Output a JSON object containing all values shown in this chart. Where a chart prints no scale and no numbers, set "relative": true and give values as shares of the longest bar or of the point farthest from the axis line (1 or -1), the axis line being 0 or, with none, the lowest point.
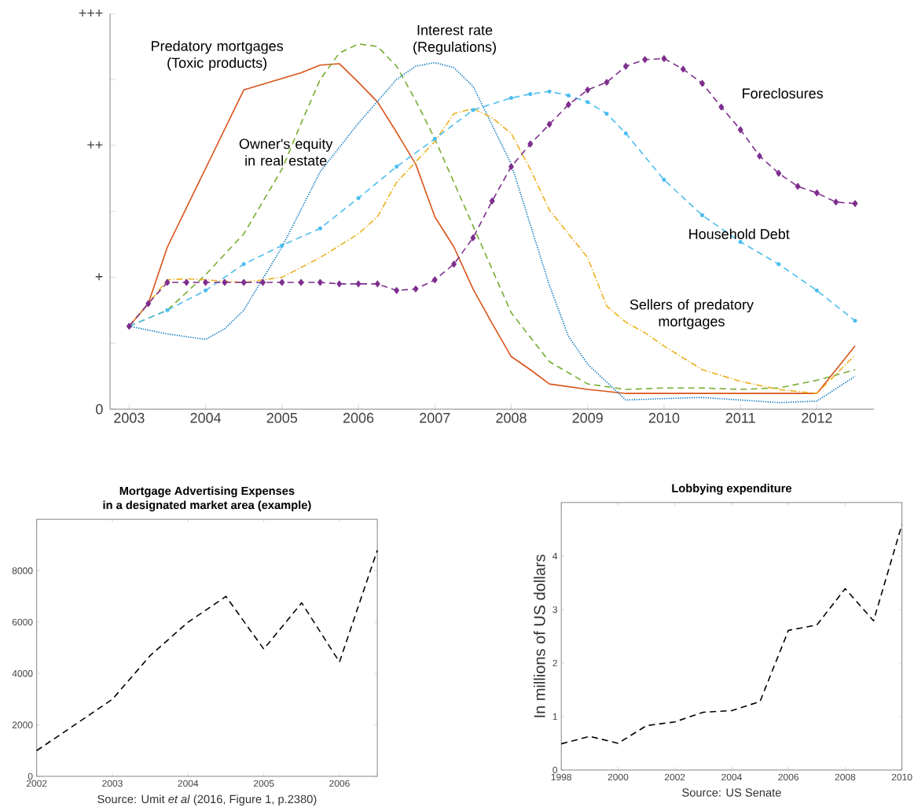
{
  "chart_data": [
    {
      "type": "line",
      "relative": true,
      "xlim": [
        2002.75,
        2012.75
      ],
      "xticks": [
        2003,
        2004,
        2005,
        2006,
        2007,
        2008,
        2009,
        2010,
        2011,
        2012
      ],
      "annotations": [
        "0",
        "+",
        "++",
        "+++"
      ],
      "series": [
        {
          "name": "Predatory mortgages (Toxic products)",
          "color": "#d95319",
          "line_style": "solid",
          "marker": "none",
          "x": [
            2003,
            2003.25,
            2003.5,
            2004.5,
            2005.25,
            2005.5,
            2005.75,
            2006,
            2006.25,
            2006.5,
            2006.75,
            2007,
            2007.25,
            2007.5,
            2007.75,
            2008,
            2008.25,
            2008.5,
            2009,
            2009.5,
            2012,
            2012.5
          ],
          "values": [
            0.227,
            0.289,
            0.444,
            0.874,
            0.921,
            0.942,
            0.946,
            0.895,
            0.841,
            0.758,
            0.671,
            0.527,
            0.444,
            0.329,
            0.235,
            0.144,
            0.108,
            0.069,
            0.054,
            0.043,
            0.043,
            0.173
          ]
        },
        {
          "name": "Owner's equity in real estate",
          "color": "#77ac30",
          "line_style": "dashed",
          "marker": "none",
          "x": [
            2003,
            2003.5,
            2004,
            2004.5,
            2005,
            2005.25,
            2005.5,
            2005.75,
            2006,
            2006.25,
            2006.5,
            2006.75,
            2007,
            2007.5,
            2008,
            2008.5,
            2009,
            2009.5,
            2010,
            2010.5,
            2011,
            2011.5,
            2012,
            2012.5
          ],
          "values": [
            0.227,
            0.271,
            0.368,
            0.48,
            0.657,
            0.783,
            0.903,
            0.975,
            1,
            0.993,
            0.939,
            0.845,
            0.74,
            0.502,
            0.264,
            0.13,
            0.069,
            0.054,
            0.058,
            0.058,
            0.054,
            0.058,
            0.079,
            0.108
          ]
        },
        {
          "name": "Interest rate (Regulations)",
          "color": "#0072bd",
          "line_style": "dotted",
          "marker": "none",
          "x": [
            2003,
            2003.5,
            2004,
            2004.25,
            2004.5,
            2005,
            2005.5,
            2006,
            2006.5,
            2006.75,
            2007,
            2007.25,
            2007.5,
            2008,
            2008.5,
            2008.75,
            2009,
            2009.5,
            2010,
            2010.5,
            2011,
            2011.5,
            2012,
            2012.5
          ],
          "values": [
            0.227,
            0.206,
            0.191,
            0.22,
            0.271,
            0.444,
            0.65,
            0.783,
            0.903,
            0.939,
            0.949,
            0.935,
            0.884,
            0.671,
            0.339,
            0.199,
            0.123,
            0.025,
            0.029,
            0.032,
            0.025,
            0.018,
            0.022,
            0.09
          ]
        },
        {
          "name": "Sellers of predatory mortgages",
          "color": "#edb120",
          "line_style": "dashdot",
          "marker": "none",
          "x": [
            2003,
            2003.25,
            2003.5,
            2003.75,
            2004,
            2004.5,
            2005,
            2005.5,
            2006,
            2006.25,
            2006.5,
            2007,
            2007.25,
            2007.5,
            2007.75,
            2008,
            2008.25,
            2008.5,
            2009,
            2009.25,
            2009.5,
            2009.75,
            2010,
            2010.5,
            2011,
            2011.5,
            2012,
            2012.5
          ],
          "values": [
            0.227,
            0.289,
            0.354,
            0.357,
            0.354,
            0.347,
            0.361,
            0.415,
            0.48,
            0.527,
            0.621,
            0.733,
            0.809,
            0.823,
            0.798,
            0.755,
            0.657,
            0.545,
            0.415,
            0.282,
            0.238,
            0.209,
            0.173,
            0.108,
            0.076,
            0.054,
            0.043,
            0.148
          ]
        },
        {
          "name": "Household Debt",
          "color": "#4dbeee",
          "line_style": "dashed",
          "marker": "circle",
          "x": [
            2003,
            2003.5,
            2004,
            2004.5,
            2005,
            2005.5,
            2006,
            2006.5,
            2007,
            2007.5,
            2008,
            2008.25,
            2008.5,
            2008.75,
            2009,
            2009.25,
            2009.5,
            2010,
            2010.5,
            2011,
            2011.5,
            2012,
            2012.5
          ],
          "values": [
            0.227,
            0.271,
            0.325,
            0.397,
            0.448,
            0.495,
            0.578,
            0.664,
            0.74,
            0.819,
            0.852,
            0.863,
            0.87,
            0.859,
            0.841,
            0.809,
            0.755,
            0.628,
            0.531,
            0.458,
            0.397,
            0.325,
            0.242
          ]
        },
        {
          "name": "Foreclosures",
          "color": "#7e2f8e",
          "line_style": "dashed",
          "marker": "diamond",
          "x": [
            2003,
            2003.25,
            2003.5,
            2003.75,
            2004,
            2004.25,
            2004.5,
            2004.75,
            2005,
            2005.25,
            2005.5,
            2005.75,
            2006,
            2006.25,
            2006.5,
            2006.75,
            2007,
            2007.25,
            2007.5,
            2007.75,
            2008,
            2008.25,
            2008.5,
            2008.75,
            2009,
            2009.25,
            2009.5,
            2009.75,
            2010,
            2010.25,
            2010.5,
            2010.75,
            2011,
            2011.25,
            2011.5,
            2011.75,
            2012,
            2012.25,
            2012.5
          ],
          "values": [
            0.227,
            0.289,
            0.347,
            0.347,
            0.347,
            0.347,
            0.347,
            0.347,
            0.347,
            0.347,
            0.347,
            0.343,
            0.343,
            0.343,
            0.325,
            0.329,
            0.354,
            0.397,
            0.469,
            0.57,
            0.664,
            0.726,
            0.78,
            0.834,
            0.874,
            0.895,
            0.939,
            0.957,
            0.96,
            0.931,
            0.892,
            0.827,
            0.765,
            0.693,
            0.646,
            0.61,
            0.592,
            0.567,
            0.563
          ]
        }
      ]
    },
    {
      "type": "line",
      "title": "Mortgage Advertising Expenses",
      "subtitle": "in a designated market area (example)",
      "xlim": [
        2002,
        2006.5
      ],
      "ylim": [
        0,
        10000
      ],
      "xticks": [
        2002,
        2003,
        2004,
        2005,
        2006
      ],
      "yticks": [
        0,
        2000,
        4000,
        6000,
        8000
      ],
      "annotations": [
        "Source: Umit *et al* (2016, Figure 1, p.2380)"
      ],
      "series": [
        {
          "color": "#000000",
          "line_style": "dashed",
          "marker": "none",
          "x": [
            2002,
            2003,
            2003.5,
            2004,
            2004.5,
            2005,
            2005.5,
            2006,
            2006.5
          ],
          "values": [
            1000,
            3000,
            4700,
            6000,
            7000,
            4950,
            6750,
            4450,
            8800
          ]
        }
      ]
    },
    {
      "type": "line",
      "title": "Lobbying expenditure",
      "ylabel": "In millions of US dollars",
      "xlim": [
        1998,
        2010
      ],
      "ylim": [
        0,
        5
      ],
      "xticks": [
        1998,
        2000,
        2002,
        2004,
        2006,
        2008,
        2010
      ],
      "yticks": [
        0,
        1,
        2,
        3,
        4
      ],
      "annotations": [
        "Source: US Senate"
      ],
      "series": [
        {
          "color": "#000000",
          "line_style": "dashed",
          "marker": "none",
          "x": [
            1998,
            1999,
            2000,
            2001,
            2002,
            2003,
            2004,
            2005,
            2006,
            2007,
            2008,
            2009,
            2010
          ],
          "values": [
            0.49,
            0.63,
            0.5,
            0.83,
            0.9,
            1.08,
            1.11,
            1.28,
            2.61,
            2.71,
            3.39,
            2.79,
            4.59
          ]
        }
      ]
    }
  ]
}
